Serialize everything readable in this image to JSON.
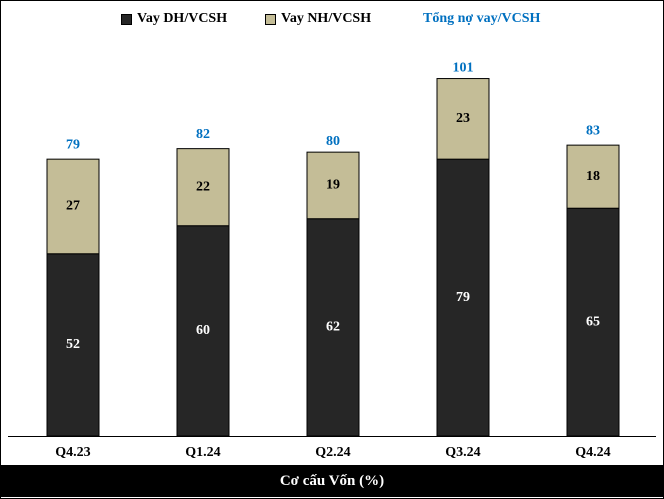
{
  "chart_data": {
    "type": "bar",
    "stacked": true,
    "categories": [
      "Q4.23",
      "Q1.24",
      "Q2.24",
      "Q3.24",
      "Q4.24"
    ],
    "series": [
      {
        "name": "Vay DH/VCSH",
        "values": [
          52,
          60,
          62,
          79,
          65
        ],
        "color": "#262626"
      },
      {
        "name": "Vay NH/VCSH",
        "values": [
          27,
          22,
          19,
          23,
          18
        ],
        "color": "#c4bd97"
      }
    ],
    "totals": {
      "name": "Tổng nợ vay/VCSH",
      "values": [
        79,
        82,
        80,
        101,
        83
      ],
      "color": "#0070c0"
    },
    "title": "Cơ cấu Vốn (%)",
    "xlabel": "",
    "ylabel": "",
    "ylim": [
      0,
      113
    ],
    "grid": false,
    "legend": "top"
  }
}
